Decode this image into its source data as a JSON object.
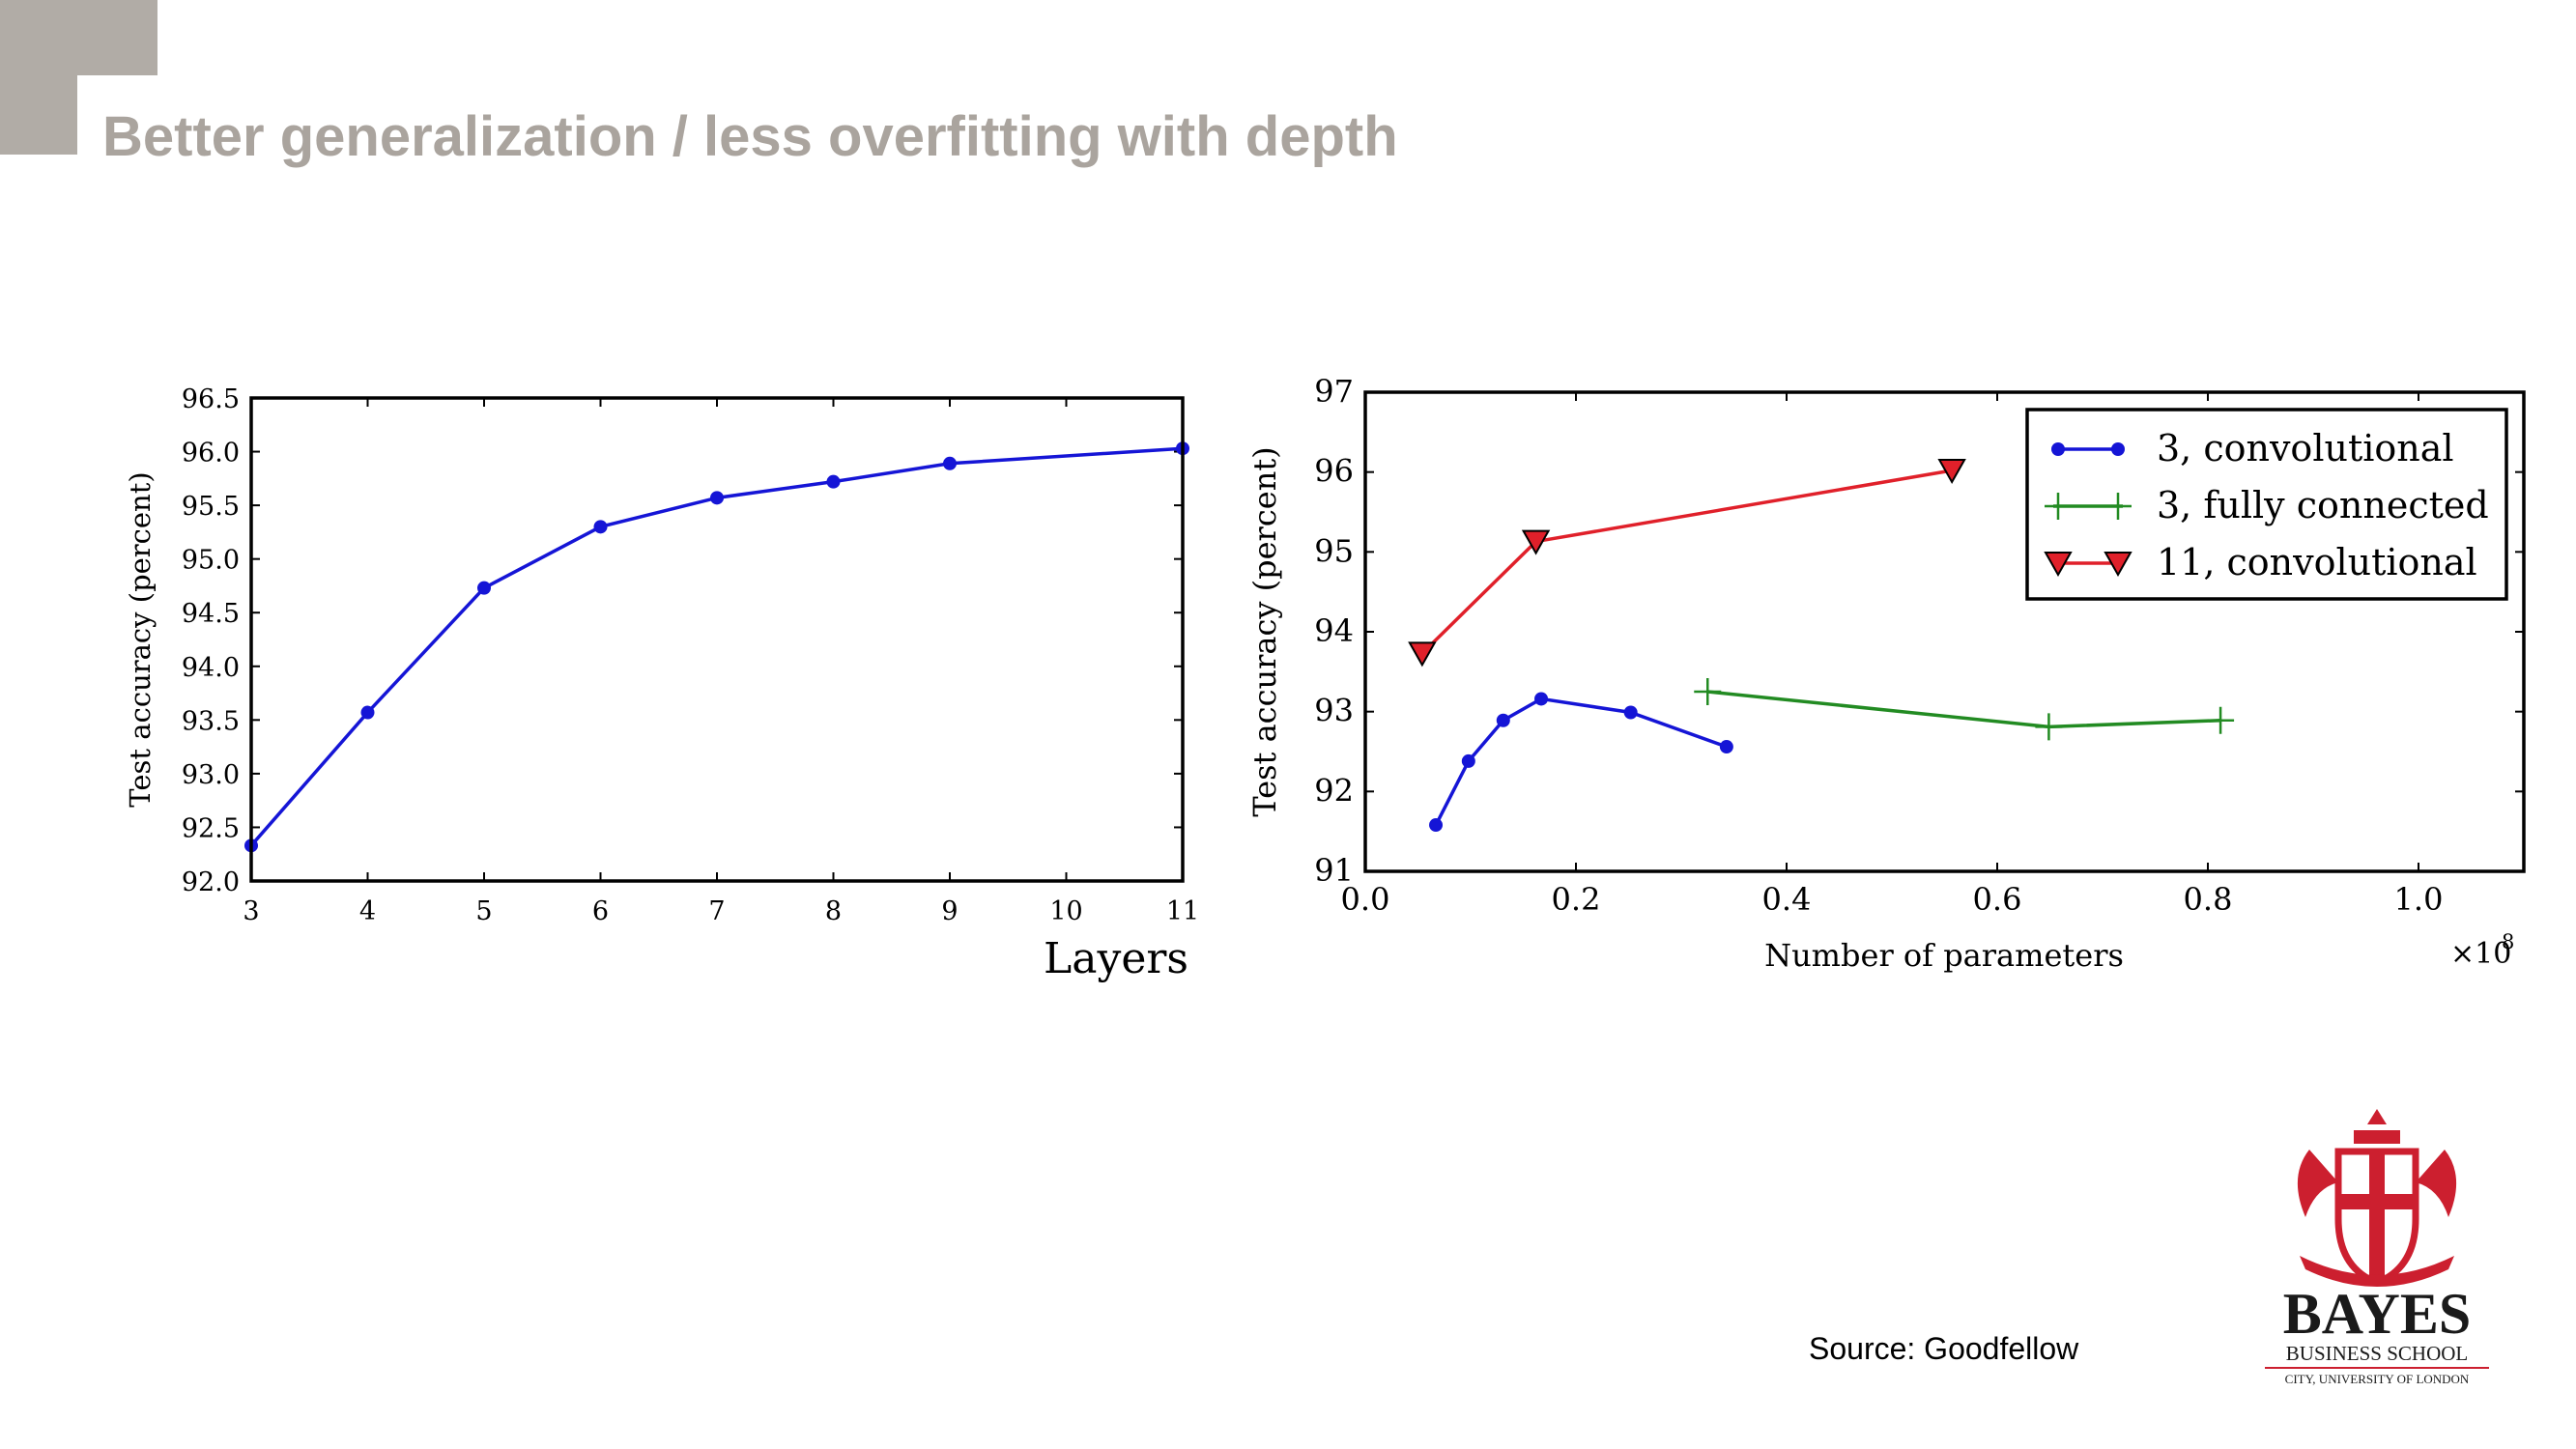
{
  "slide": {
    "title": "Better generalization / less overfitting with depth",
    "source": "Source: Goodfellow"
  },
  "logo": {
    "line1": "BAYES",
    "line2": "BUSINESS SCHOOL",
    "line3": "CITY, UNIVERSITY OF LONDON",
    "color": "#cc1f2f"
  },
  "chart_data": [
    {
      "type": "line",
      "xlabel": "Layers",
      "ylabel": "Test accuracy (percent)",
      "xlim": [
        3,
        11
      ],
      "ylim": [
        92.0,
        96.5
      ],
      "xticks": [
        3,
        4,
        5,
        6,
        7,
        8,
        9,
        10,
        11
      ],
      "xtick_labels": [
        "3",
        "4",
        "5",
        "6",
        "7",
        "8",
        "9",
        "10",
        "11"
      ],
      "yticks": [
        92.0,
        92.5,
        93.0,
        93.5,
        94.0,
        94.5,
        95.0,
        95.5,
        96.0,
        96.5
      ],
      "ytick_labels": [
        "92.0",
        "92.5",
        "93.0",
        "93.5",
        "94.0",
        "94.5",
        "95.0",
        "95.5",
        "96.0",
        "96.5"
      ],
      "grid": false,
      "series": [
        {
          "color": "#1515d6",
          "marker": "circle",
          "x": [
            3,
            4,
            5,
            6,
            7,
            8,
            9,
            11
          ],
          "y": [
            92.33,
            93.57,
            94.73,
            95.3,
            95.57,
            95.72,
            95.89,
            96.03
          ]
        }
      ]
    },
    {
      "type": "line",
      "xlabel": "Number of parameters",
      "ylabel": "Test accuracy (percent)",
      "x_multiplier_label": "×10",
      "x_multiplier_exponent": "8",
      "xlim": [
        0.0,
        1.1
      ],
      "ylim": [
        91,
        97
      ],
      "xticks": [
        0.0,
        0.2,
        0.4,
        0.6,
        0.8,
        1.0
      ],
      "xtick_labels": [
        "0.0",
        "0.2",
        "0.4",
        "0.6",
        "0.8",
        "1.0"
      ],
      "yticks": [
        91,
        92,
        93,
        94,
        95,
        96,
        97
      ],
      "ytick_labels": [
        "91",
        "92",
        "93",
        "94",
        "95",
        "96",
        "97"
      ],
      "grid": false,
      "legend_position": "top-right",
      "series": [
        {
          "name": "3, convolutional",
          "color": "#1515d6",
          "marker": "circle",
          "x": [
            0.067,
            0.098,
            0.131,
            0.167,
            0.252,
            0.343
          ],
          "y": [
            91.58,
            92.38,
            92.89,
            93.16,
            92.99,
            92.56
          ]
        },
        {
          "name": "3, fully connected",
          "color": "#228b22",
          "marker": "plus",
          "x": [
            0.325,
            0.649,
            0.812
          ],
          "y": [
            93.25,
            92.81,
            92.89
          ]
        },
        {
          "name": "11, convolutional",
          "color": "#e0202a",
          "marker": "triangle-down",
          "x": [
            0.054,
            0.162,
            0.557
          ],
          "y": [
            93.73,
            95.13,
            96.02
          ]
        }
      ]
    }
  ]
}
